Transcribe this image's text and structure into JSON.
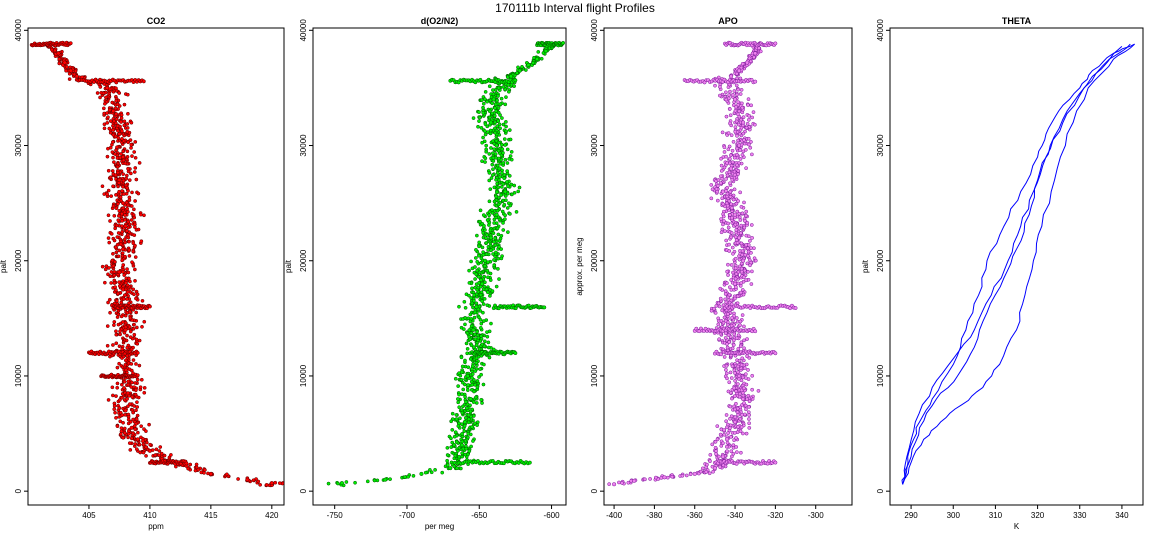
{
  "title": "170111b   Interval flight Profiles",
  "chart_data": [
    {
      "type": "scatter",
      "title": "CO2",
      "xlabel": "ppm",
      "ylabel": "palt",
      "xlim": [
        400,
        421
      ],
      "ylim": [
        -1200,
        40200
      ],
      "xticks": [
        405,
        410,
        415,
        420
      ],
      "yticks": [
        0,
        10000,
        20000,
        30000,
        40000
      ],
      "colors": {
        "fill": "#ff0000",
        "edge": "#550000"
      },
      "series": [
        {
          "x": [
            401.5,
            402.5,
            403.0,
            403.5,
            404.0,
            405.5,
            406.5,
            407.0,
            407.5,
            407.8,
            407.5,
            407.8,
            408.0,
            407.8,
            407.5,
            407.8,
            408.0,
            408.0,
            407.8,
            408.0,
            408.2,
            408.0,
            408.5,
            409.0,
            410.0,
            411.0,
            413.0,
            415.0,
            418.0,
            420.0
          ],
          "y": [
            38800,
            38000,
            37200,
            36500,
            36000,
            35600,
            35000,
            33000,
            31000,
            29000,
            27000,
            25000,
            23000,
            21000,
            19000,
            17500,
            16000,
            14000,
            12000,
            10000,
            8500,
            7000,
            5500,
            4500,
            3500,
            2800,
            2200,
            1500,
            1000,
            700
          ]
        }
      ],
      "bands": [
        {
          "y": 38800,
          "x": [
            400.3,
            403.5
          ]
        },
        {
          "y": 35600,
          "x": [
            404.0,
            409.5
          ]
        },
        {
          "y": 16000,
          "x": [
            407.0,
            410.0
          ]
        },
        {
          "y": 12000,
          "x": [
            405.0,
            409.0
          ]
        },
        {
          "y": 10000,
          "x": [
            406.0,
            409.0
          ]
        },
        {
          "y": 2500,
          "x": [
            410.0,
            413.0
          ]
        }
      ]
    },
    {
      "type": "scatter",
      "title": "d(O2/N2)",
      "xlabel": "per meg",
      "ylabel": "palt",
      "xlim": [
        -765,
        -590
      ],
      "ylim": [
        -1200,
        40200
      ],
      "xticks": [
        -750,
        -700,
        -650,
        -600
      ],
      "yticks": [
        0,
        10000,
        20000,
        30000,
        40000
      ],
      "colors": {
        "fill": "#00ee00",
        "edge": "#005500"
      },
      "series": [
        {
          "x": [
            -598,
            -604,
            -610,
            -616,
            -622,
            -628,
            -632,
            -640,
            -642,
            -638,
            -636,
            -632,
            -638,
            -642,
            -646,
            -648,
            -652,
            -654,
            -650,
            -658,
            -656,
            -660,
            -662,
            -664,
            -670,
            -690,
            -715,
            -745
          ],
          "y": [
            38800,
            38200,
            37500,
            37000,
            36500,
            36000,
            35600,
            34000,
            32000,
            30000,
            28000,
            26000,
            24000,
            22000,
            20000,
            18000,
            16000,
            14000,
            12000,
            10000,
            8000,
            6000,
            4000,
            2500,
            2000,
            1500,
            1000,
            700
          ]
        }
      ],
      "bands": [
        {
          "y": 38800,
          "x": [
            -610,
            -592
          ]
        },
        {
          "y": 35600,
          "x": [
            -670,
            -625
          ]
        },
        {
          "y": 16000,
          "x": [
            -640,
            -605
          ]
        },
        {
          "y": 12000,
          "x": [
            -655,
            -625
          ]
        },
        {
          "y": 2500,
          "x": [
            -665,
            -615
          ]
        }
      ]
    },
    {
      "type": "scatter",
      "title": "APO",
      "xlabel": "",
      "ylabel": "approx. per meg",
      "xlim": [
        -405,
        -282
      ],
      "ylim": [
        -1200,
        40200
      ],
      "xticks": [
        -400,
        -380,
        -360,
        -340,
        -320,
        -300
      ],
      "yticks": [
        0,
        10000,
        20000,
        30000,
        40000
      ],
      "colors": {
        "fill": "#ee82ee",
        "edge": "#7a1a9a"
      },
      "series": [
        {
          "x": [
            -328,
            -330,
            -334,
            -338,
            -342,
            -345,
            -340,
            -336,
            -338,
            -342,
            -346,
            -340,
            -338,
            -336,
            -340,
            -344,
            -342,
            -340,
            -338,
            -336,
            -340,
            -344,
            -346,
            -350,
            -360,
            -375,
            -390,
            -400
          ],
          "y": [
            38800,
            38000,
            37200,
            36500,
            36000,
            35600,
            34000,
            32000,
            30000,
            28000,
            26000,
            24000,
            22000,
            20000,
            18000,
            16000,
            14000,
            12000,
            10000,
            8000,
            6000,
            4500,
            3000,
            2000,
            1500,
            1200,
            900,
            600
          ]
        }
      ],
      "bands": [
        {
          "y": 38800,
          "x": [
            -345,
            -320
          ]
        },
        {
          "y": 35600,
          "x": [
            -365,
            -330
          ]
        },
        {
          "y": 16000,
          "x": [
            -345,
            -310
          ]
        },
        {
          "y": 14000,
          "x": [
            -360,
            -330
          ]
        },
        {
          "y": 12000,
          "x": [
            -350,
            -320
          ]
        },
        {
          "y": 2500,
          "x": [
            -350,
            -320
          ]
        }
      ]
    },
    {
      "type": "line",
      "title": "THETA",
      "xlabel": "K",
      "ylabel": "palt",
      "xlim": [
        285,
        345
      ],
      "ylim": [
        -1200,
        40200
      ],
      "xticks": [
        290,
        300,
        310,
        320,
        330,
        340
      ],
      "yticks": [
        0,
        10000,
        20000,
        30000,
        40000
      ],
      "colors": {
        "line": "#0000ff"
      },
      "series": [
        {
          "x": [
            288,
            289,
            290,
            292,
            295,
            300,
            303,
            306,
            308,
            312,
            316,
            320,
            322,
            325,
            330,
            333,
            338,
            343
          ],
          "y": [
            600,
            2000,
            4000,
            6000,
            8000,
            11000,
            14000,
            17000,
            20000,
            23000,
            26000,
            29000,
            31000,
            33000,
            35000,
            36500,
            38000,
            38800
          ]
        },
        {
          "x": [
            288,
            290,
            293,
            297,
            302,
            307,
            311,
            315,
            317,
            319,
            321,
            324,
            327,
            332,
            338,
            343
          ],
          "y": [
            600,
            2500,
            4500,
            6000,
            7500,
            9000,
            11000,
            14000,
            17000,
            20000,
            23000,
            27000,
            31000,
            35000,
            37500,
            38800
          ]
        },
        {
          "x": [
            288,
            289,
            291,
            295,
            300,
            305,
            309,
            313,
            316,
            319,
            322,
            326,
            331,
            337,
            342
          ],
          "y": [
            600,
            3000,
            6000,
            9000,
            11500,
            14000,
            17000,
            20000,
            23000,
            26000,
            29000,
            32000,
            35000,
            37500,
            38800
          ]
        },
        {
          "x": [
            288,
            290,
            292,
            296,
            301,
            305,
            308,
            312,
            315,
            318,
            320,
            323,
            327,
            333,
            340
          ],
          "y": [
            600,
            3000,
            5500,
            8000,
            10000,
            12500,
            15500,
            18500,
            21000,
            24000,
            27000,
            30000,
            33000,
            36000,
            38600
          ]
        }
      ]
    }
  ]
}
